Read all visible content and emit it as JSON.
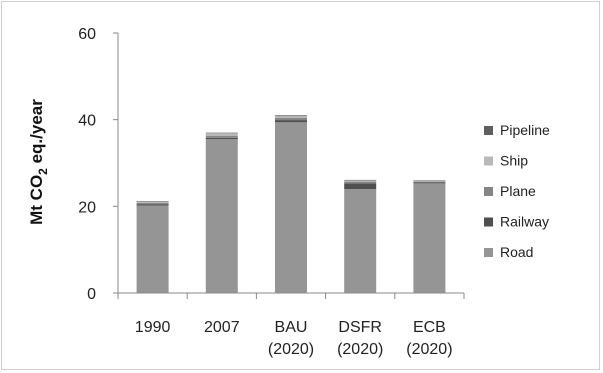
{
  "chart_data": {
    "type": "bar",
    "stacked": true,
    "categories": [
      "1990",
      "2007",
      "BAU (2020)",
      "DSFR (2020)",
      "ECB (2020)"
    ],
    "category_lines": [
      [
        "1990"
      ],
      [
        "2007"
      ],
      [
        "BAU",
        "(2020)"
      ],
      [
        "DSFR",
        "(2020)"
      ],
      [
        "ECB",
        "(2020)"
      ]
    ],
    "series": [
      {
        "name": "Road",
        "color": "#959595",
        "values": [
          20.2,
          35.5,
          39.4,
          24.0,
          25.3
        ]
      },
      {
        "name": "Railway",
        "color": "#4f4f4f",
        "values": [
          0.3,
          0.3,
          0.5,
          1.3,
          0.2
        ]
      },
      {
        "name": "Plane",
        "color": "#858585",
        "values": [
          0.3,
          0.5,
          0.5,
          0.4,
          0.2
        ]
      },
      {
        "name": "Ship",
        "color": "#b9b9b9",
        "values": [
          0.3,
          0.6,
          0.4,
          0.3,
          0.2
        ]
      },
      {
        "name": "Pipeline",
        "color": "#5f5f5f",
        "values": [
          0.1,
          0.1,
          0.2,
          0.1,
          0.1
        ]
      }
    ],
    "legend_order": [
      "Pipeline",
      "Ship",
      "Plane",
      "Railway",
      "Road"
    ],
    "legend_position": "right",
    "ylabel": {
      "main": "Mt CO",
      "sub": "2",
      "rest": " eq./year"
    },
    "ylim": [
      0,
      60
    ],
    "yticks": [
      0,
      20,
      40,
      60
    ],
    "grid": false
  }
}
